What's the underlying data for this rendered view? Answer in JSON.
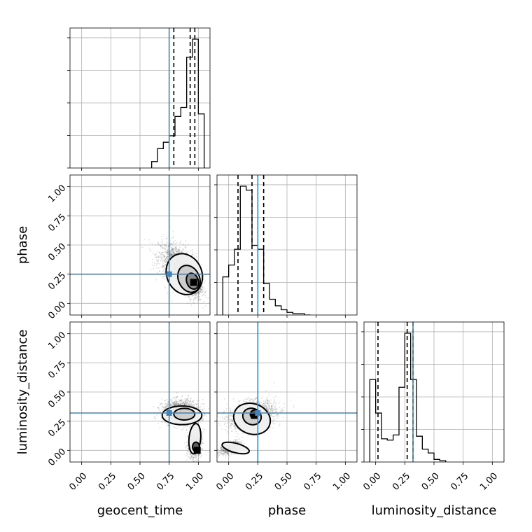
{
  "chart_data": {
    "type": "corner",
    "parameters": [
      "geocent_time",
      "phase",
      "luminosity_distance"
    ],
    "axis_range": [
      -0.1,
      1.1
    ],
    "ticks": [
      0.0,
      0.25,
      0.5,
      0.75,
      1.0
    ],
    "tick_labels": [
      "0.00",
      "0.25",
      "0.50",
      "0.75",
      "1.00"
    ],
    "truths": [
      0.75,
      0.25,
      0.32
    ],
    "truth_color": "#4682b4",
    "grid": true,
    "diagonal": [
      {
        "parameter": "geocent_time",
        "quantiles": [
          0.79,
          0.93,
          0.97
        ],
        "bin_edges": [
          0.6,
          0.65,
          0.7,
          0.75,
          0.8,
          0.85,
          0.9,
          0.95,
          1.0,
          1.05
        ],
        "counts": [
          0.05,
          0.15,
          0.2,
          0.25,
          0.4,
          0.47,
          0.86,
          1.0,
          0.42
        ]
      },
      {
        "parameter": "phase",
        "quantiles": [
          0.08,
          0.2,
          0.3
        ],
        "bin_edges": [
          -0.05,
          0.0,
          0.05,
          0.1,
          0.15,
          0.2,
          0.25,
          0.3,
          0.35,
          0.4,
          0.45,
          0.5,
          0.55,
          0.6,
          0.65,
          0.7
        ],
        "counts": [
          0.29,
          0.38,
          0.5,
          0.98,
          0.95,
          0.53,
          0.5,
          0.24,
          0.12,
          0.07,
          0.04,
          0.02,
          0.01,
          0.01,
          0.0
        ]
      },
      {
        "parameter": "luminosity_distance",
        "quantiles": [
          0.02,
          0.27,
          0.32
        ],
        "bin_edges": [
          -0.05,
          0.0,
          0.05,
          0.1,
          0.15,
          0.2,
          0.25,
          0.3,
          0.35,
          0.4,
          0.45,
          0.5,
          0.55,
          0.6
        ],
        "counts": [
          0.64,
          0.38,
          0.18,
          0.17,
          0.21,
          0.58,
          1.0,
          0.64,
          0.2,
          0.1,
          0.07,
          0.02,
          0.01
        ]
      }
    ],
    "pairs": [
      {
        "x": "geocent_time",
        "y": "phase",
        "clusters": [
          {
            "mean": [
              0.82,
              0.33
            ],
            "sd": [
              0.08,
              0.09
            ],
            "rho": -0.4,
            "n": 1500
          },
          {
            "mean": [
              0.95,
              0.18
            ],
            "sd": [
              0.04,
              0.07
            ],
            "rho": -0.3,
            "n": 900
          }
        ],
        "contours": [
          {
            "cx": 0.88,
            "cy": 0.25,
            "rx": 0.15,
            "ry": 0.18,
            "rot": -25,
            "fill": "#f0f0f0"
          },
          {
            "cx": 0.92,
            "cy": 0.21,
            "rx": 0.09,
            "ry": 0.12,
            "rot": -25,
            "fill": "#cccccc"
          },
          {
            "cx": 0.95,
            "cy": 0.19,
            "rx": 0.05,
            "ry": 0.07,
            "rot": -20,
            "fill": "#888888"
          }
        ],
        "peak": [
          0.96,
          0.18
        ]
      },
      {
        "x": "geocent_time",
        "y": "luminosity_distance",
        "clusters": [
          {
            "mean": [
              0.85,
              0.33
            ],
            "sd": [
              0.08,
              0.05
            ],
            "rho": 0.0,
            "n": 1500
          },
          {
            "mean": [
              0.97,
              0.05
            ],
            "sd": [
              0.03,
              0.06
            ],
            "rho": 0.2,
            "n": 700
          }
        ],
        "contours": [
          {
            "cx": 0.86,
            "cy": 0.3,
            "rx": 0.17,
            "ry": 0.08,
            "rot": 0,
            "fill": "#f0f0f0"
          },
          {
            "cx": 0.97,
            "cy": 0.1,
            "rx": 0.05,
            "ry": 0.13,
            "rot": 5,
            "fill": "#f0f0f0"
          },
          {
            "cx": 0.88,
            "cy": 0.31,
            "rx": 0.09,
            "ry": 0.05,
            "rot": 0,
            "fill": "#cccccc"
          },
          {
            "cx": 0.98,
            "cy": 0.03,
            "rx": 0.03,
            "ry": 0.04,
            "rot": 0,
            "fill": "#555555"
          }
        ],
        "peak": [
          0.99,
          0.0
        ]
      },
      {
        "x": "phase",
        "y": "luminosity_distance",
        "clusters": [
          {
            "mean": [
              0.2,
              0.3
            ],
            "sd": [
              0.1,
              0.06
            ],
            "rho": 0.3,
            "n": 1600
          },
          {
            "mean": [
              0.02,
              0.02
            ],
            "sd": [
              0.05,
              0.03
            ],
            "rho": 0.5,
            "n": 500
          }
        ],
        "contours": [
          {
            "cx": 0.2,
            "cy": 0.27,
            "rx": 0.16,
            "ry": 0.13,
            "rot": 20,
            "fill": "#f0f0f0"
          },
          {
            "cx": 0.06,
            "cy": 0.02,
            "rx": 0.12,
            "ry": 0.04,
            "rot": 15,
            "fill": "#f0f0f0"
          },
          {
            "cx": 0.2,
            "cy": 0.29,
            "rx": 0.08,
            "ry": 0.07,
            "rot": 20,
            "fill": "#cccccc"
          },
          {
            "cx": 0.22,
            "cy": 0.31,
            "rx": 0.035,
            "ry": 0.035,
            "rot": 0,
            "fill": "#777777"
          }
        ],
        "peak": [
          0.22,
          0.3
        ]
      }
    ]
  }
}
